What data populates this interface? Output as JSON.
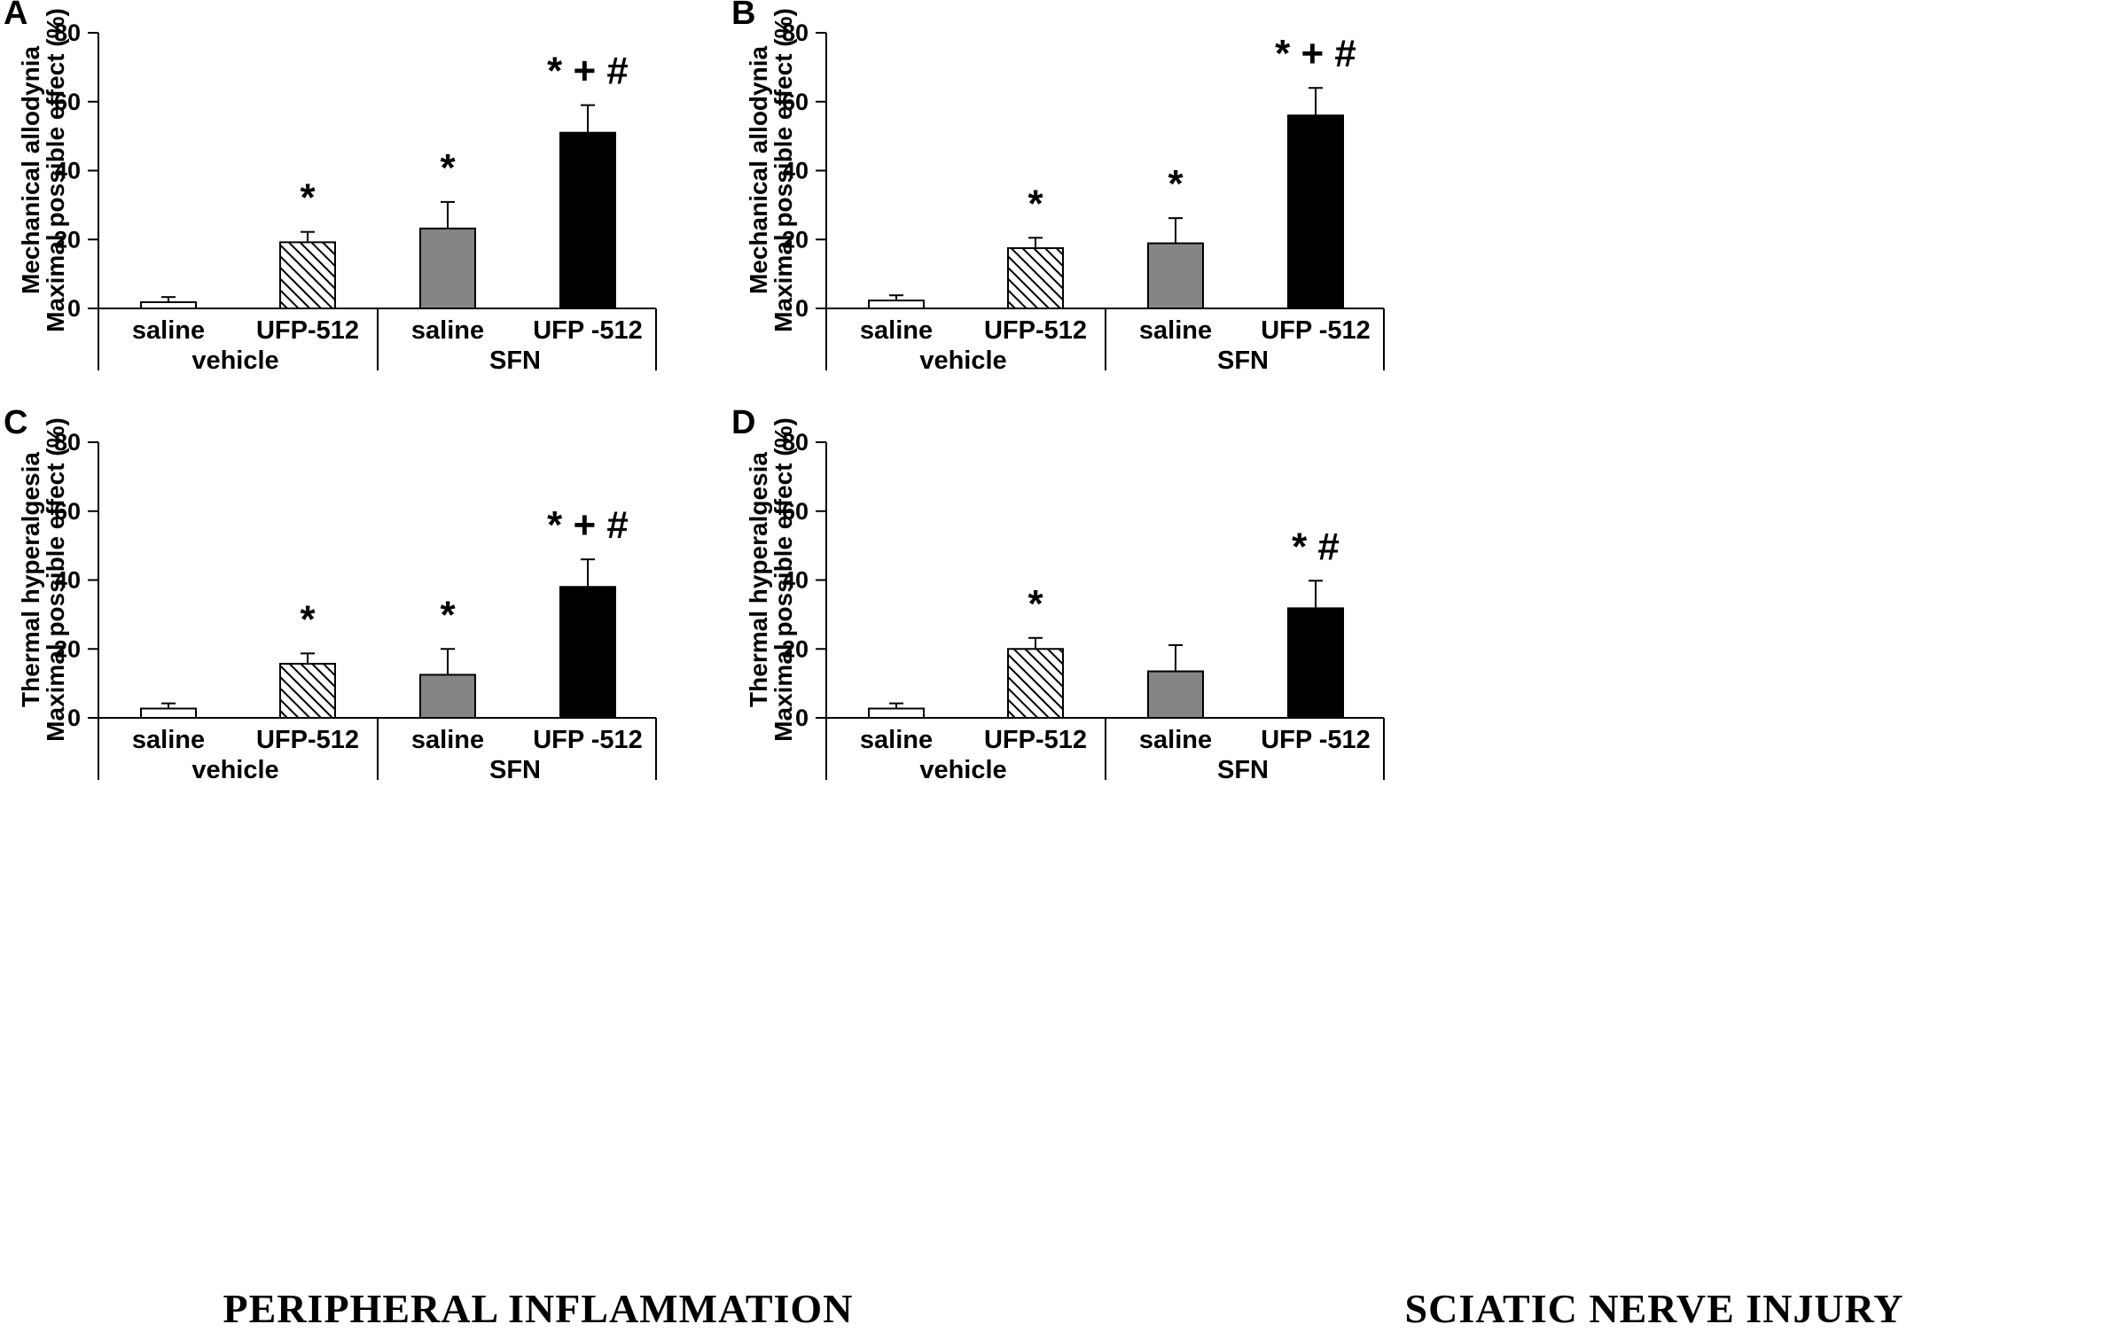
{
  "chart_data": [
    {
      "type": "bar",
      "panel": "A",
      "ylabel_lines": [
        "Mechanical allodynia",
        "Maximal possible effect (%)"
      ],
      "ylim": [
        0,
        80
      ],
      "yticks": [
        0,
        20,
        40,
        60,
        80
      ],
      "categories": [
        "saline",
        "UFP-512",
        "saline",
        "UFP -512"
      ],
      "groups": [
        {
          "name": "vehicle",
          "span": [
            0,
            1
          ]
        },
        {
          "name": "SFN",
          "span": [
            2,
            3
          ]
        }
      ],
      "values": [
        1.8,
        19.2,
        23.2,
        51.0
      ],
      "errors": [
        1.5,
        3.0,
        7.7,
        8.0
      ],
      "significance": [
        "",
        "*",
        "*",
        "* + #"
      ],
      "fills": [
        "white",
        "hatched",
        "gray",
        "black"
      ]
    },
    {
      "type": "bar",
      "panel": "B",
      "ylabel_lines": [
        "Mechanical allodynia",
        "Maximal possible effect (%)"
      ],
      "ylim": [
        0,
        80
      ],
      "yticks": [
        0,
        20,
        40,
        60,
        80
      ],
      "categories": [
        "saline",
        "UFP-512",
        "saline",
        "UFP -512"
      ],
      "groups": [
        {
          "name": "vehicle",
          "span": [
            0,
            1
          ]
        },
        {
          "name": "SFN",
          "span": [
            2,
            3
          ]
        }
      ],
      "values": [
        2.3,
        17.5,
        18.9,
        56.0
      ],
      "errors": [
        1.5,
        3.0,
        7.3,
        8.0
      ],
      "significance": [
        "",
        "*",
        "*",
        "* + #"
      ],
      "fills": [
        "white",
        "hatched",
        "gray",
        "black"
      ]
    },
    {
      "type": "bar",
      "panel": "C",
      "ylabel_lines": [
        "Thermal hyperalgesia",
        "Maximal possible effect (%)"
      ],
      "ylim": [
        0,
        80
      ],
      "yticks": [
        0,
        20,
        40,
        60,
        80
      ],
      "categories": [
        "saline",
        "UFP-512",
        "saline",
        "UFP -512"
      ],
      "groups": [
        {
          "name": "vehicle",
          "span": [
            0,
            1
          ]
        },
        {
          "name": "SFN",
          "span": [
            2,
            3
          ]
        }
      ],
      "values": [
        2.7,
        15.7,
        12.5,
        38.0
      ],
      "errors": [
        1.5,
        3.0,
        7.5,
        8.0
      ],
      "significance": [
        "",
        "*",
        "*",
        "* + #"
      ],
      "fills": [
        "white",
        "hatched",
        "gray",
        "black"
      ]
    },
    {
      "type": "bar",
      "panel": "D",
      "ylabel_lines": [
        "Thermal hyperalgesia",
        "Maximal possible effect (%)"
      ],
      "ylim": [
        0,
        80
      ],
      "yticks": [
        0,
        20,
        40,
        60,
        80
      ],
      "categories": [
        "saline",
        "UFP-512",
        "saline",
        "UFP -512"
      ],
      "groups": [
        {
          "name": "vehicle",
          "span": [
            0,
            1
          ]
        },
        {
          "name": "SFN",
          "span": [
            2,
            3
          ]
        }
      ],
      "values": [
        2.7,
        20.0,
        13.5,
        31.8
      ],
      "errors": [
        1.5,
        3.2,
        7.6,
        8.0
      ],
      "significance": [
        "",
        "*",
        "",
        "* #"
      ],
      "fills": [
        "white",
        "hatched",
        "gray",
        "black"
      ]
    }
  ],
  "footer": {
    "left": "PERIPHERAL INFLAMMATION",
    "right": "SCIATIC NERVE INJURY"
  },
  "colors": {
    "gray_bar": "#858585",
    "black_bar": "#000000",
    "white_bar": "#ffffff",
    "hatch_line": "#000000"
  }
}
